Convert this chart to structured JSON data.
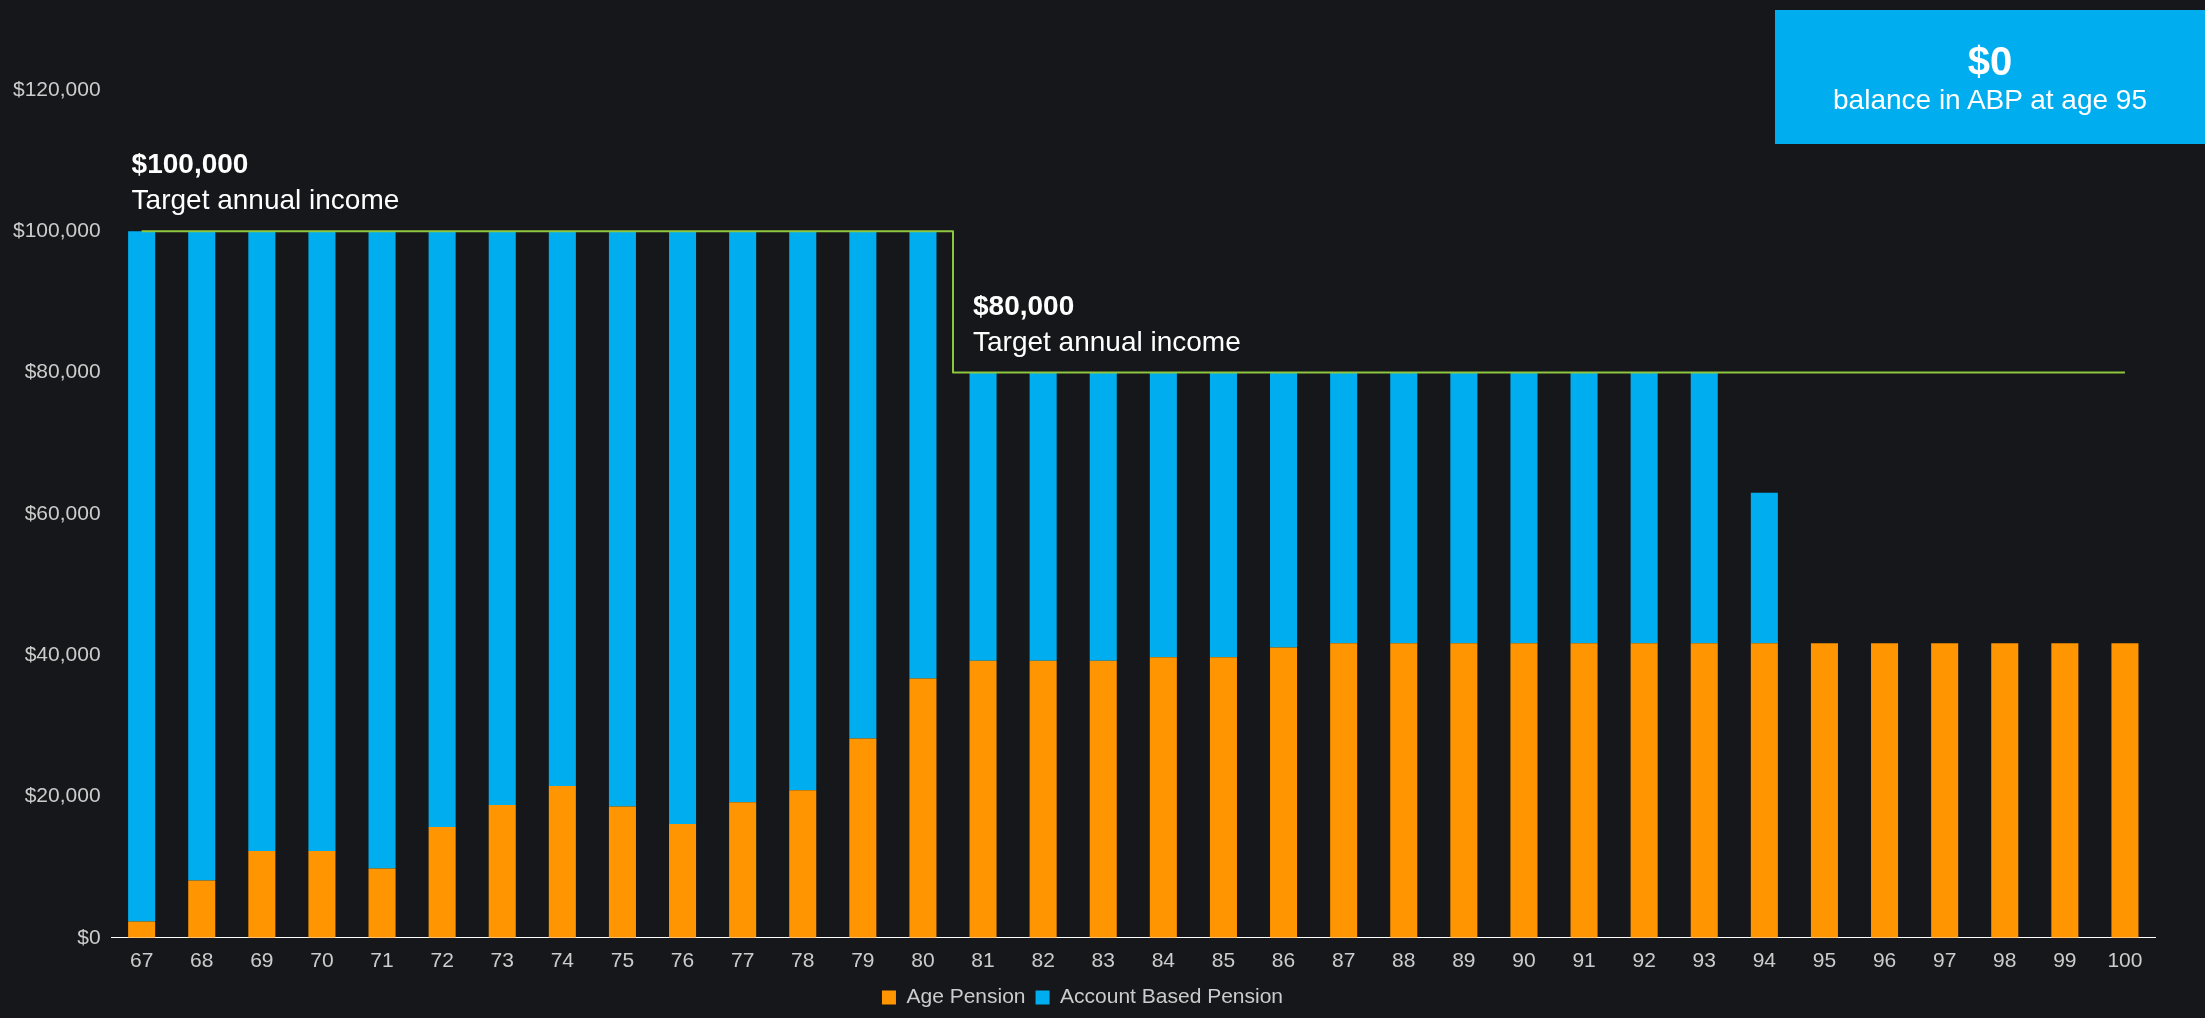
{
  "chart_data": {
    "type": "bar",
    "stacked": true,
    "grid": false,
    "legend": "bottom",
    "categories": [
      "67",
      "68",
      "69",
      "70",
      "71",
      "72",
      "73",
      "74",
      "75",
      "76",
      "77",
      "78",
      "79",
      "80",
      "81",
      "82",
      "83",
      "84",
      "85",
      "86",
      "87",
      "88",
      "89",
      "90",
      "91",
      "92",
      "93",
      "94",
      "95",
      "96",
      "97",
      "98",
      "99",
      "100"
    ],
    "series": [
      {
        "name": "Age Pension",
        "color": "#ff9500",
        "values": [
          2300,
          8100,
          12300,
          12300,
          9800,
          15700,
          18800,
          21500,
          18600,
          16100,
          19200,
          20900,
          28200,
          36700,
          39200,
          39200,
          39200,
          39700,
          39700,
          41100,
          41700,
          41700,
          41700,
          41700,
          41700,
          41700,
          41700,
          41700,
          41700,
          41700,
          41700,
          41700,
          41700,
          41700
        ]
      },
      {
        "name": "Account Based Pension",
        "color": "#00aeef",
        "values": [
          97700,
          91900,
          87700,
          87700,
          90200,
          84300,
          81200,
          78500,
          81400,
          83900,
          80800,
          79100,
          71800,
          63300,
          40800,
          40800,
          40800,
          40300,
          40300,
          38900,
          38300,
          38300,
          38300,
          38300,
          38300,
          38300,
          38300,
          21300,
          null,
          null,
          null,
          null,
          null,
          null
        ]
      },
      {
        "type": "step",
        "color": "#8dc63f",
        "values": [
          100000,
          100000,
          100000,
          100000,
          100000,
          100000,
          100000,
          100000,
          100000,
          100000,
          100000,
          100000,
          100000,
          100000,
          80000,
          80000,
          80000,
          80000,
          80000,
          80000,
          80000,
          80000,
          80000,
          80000,
          80000,
          80000,
          80000,
          80000,
          80000,
          80000,
          80000,
          80000,
          80000,
          80000
        ]
      }
    ],
    "ylim": [
      0,
      120000
    ],
    "yticks": [
      {
        "value": 0,
        "label": "$0"
      },
      {
        "value": 20000,
        "label": "$20,000"
      },
      {
        "value": 40000,
        "label": "$40,000"
      },
      {
        "value": 60000,
        "label": "$60,000"
      },
      {
        "value": 80000,
        "label": "$80,000"
      },
      {
        "value": 100000,
        "label": "$100,000"
      },
      {
        "value": 120000,
        "label": "$120,000"
      }
    ],
    "annotations": [
      {
        "text": "$100,000\nTarget annual income",
        "x": "67",
        "y": 100000
      },
      {
        "text": "$80,000\nTarget annual income",
        "x": "81",
        "y": 80000
      },
      "$0\nbalance in ABP at age 95"
    ]
  }
}
